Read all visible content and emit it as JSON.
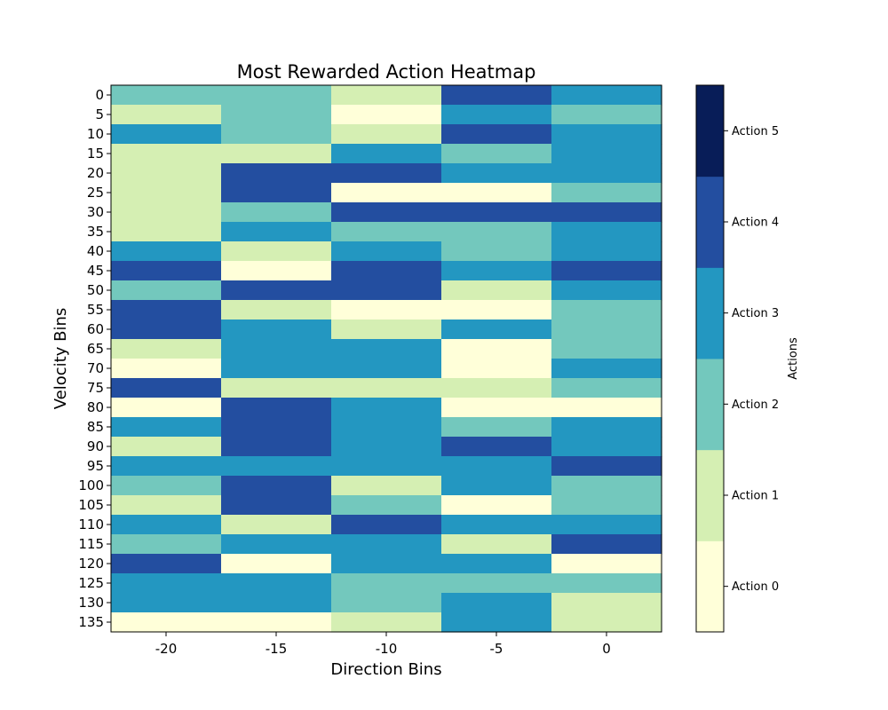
{
  "chart_data": {
    "type": "heatmap",
    "title": "Most Rewarded Action Heatmap",
    "xlabel": "Direction Bins",
    "ylabel": "Velocity Bins",
    "x_categories": [
      "-20",
      "-15",
      "-10",
      "-5",
      "0"
    ],
    "y_categories": [
      "0",
      "5",
      "10",
      "15",
      "20",
      "25",
      "30",
      "35",
      "40",
      "45",
      "50",
      "55",
      "60",
      "65",
      "70",
      "75",
      "80",
      "85",
      "90",
      "95",
      "100",
      "105",
      "110",
      "115",
      "120",
      "125",
      "130",
      "135"
    ],
    "values": [
      [
        2,
        2,
        1,
        4,
        3
      ],
      [
        1,
        2,
        0,
        3,
        2
      ],
      [
        3,
        2,
        1,
        4,
        3
      ],
      [
        1,
        1,
        3,
        2,
        3
      ],
      [
        1,
        4,
        4,
        3,
        3
      ],
      [
        1,
        4,
        0,
        0,
        2
      ],
      [
        1,
        2,
        4,
        4,
        4
      ],
      [
        1,
        3,
        2,
        2,
        3
      ],
      [
        3,
        1,
        3,
        2,
        3
      ],
      [
        4,
        0,
        4,
        3,
        4
      ],
      [
        2,
        4,
        4,
        1,
        3
      ],
      [
        4,
        1,
        0,
        0,
        2
      ],
      [
        4,
        3,
        1,
        3,
        2
      ],
      [
        1,
        3,
        3,
        0,
        2
      ],
      [
        0,
        3,
        3,
        0,
        3
      ],
      [
        4,
        1,
        1,
        1,
        2
      ],
      [
        0,
        4,
        3,
        0,
        0
      ],
      [
        3,
        4,
        3,
        2,
        3
      ],
      [
        1,
        4,
        3,
        4,
        3
      ],
      [
        3,
        3,
        3,
        3,
        4
      ],
      [
        2,
        4,
        1,
        3,
        2
      ],
      [
        1,
        4,
        2,
        0,
        2
      ],
      [
        3,
        1,
        4,
        3,
        3
      ],
      [
        2,
        3,
        3,
        1,
        4
      ],
      [
        4,
        0,
        3,
        3,
        0
      ],
      [
        3,
        3,
        2,
        2,
        2
      ],
      [
        3,
        3,
        2,
        3,
        1
      ],
      [
        0,
        0,
        1,
        3,
        1
      ]
    ],
    "colorbar": {
      "label": "Actions",
      "ticks": [
        "Action 0",
        "Action 1",
        "Action 2",
        "Action 3",
        "Action 4",
        "Action 5"
      ],
      "range": [
        -0.5,
        5.5
      ]
    },
    "colormap": {
      "boundaries": [
        0.5,
        1.5,
        2.5,
        3.5,
        4.5
      ],
      "colors": [
        "#ffffd9",
        "#d5efb3",
        "#73c8bd",
        "#2397c1",
        "#234ea0",
        "#081d58",
        "#ffffff"
      ]
    }
  }
}
